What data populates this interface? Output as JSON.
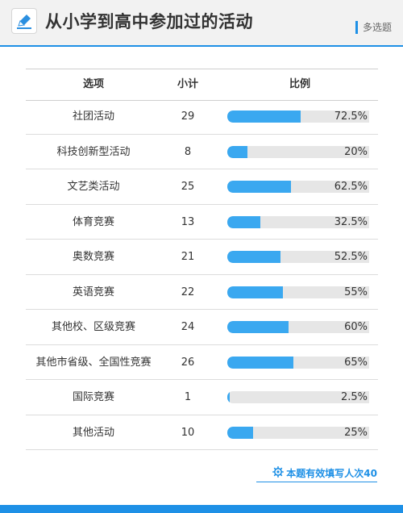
{
  "header": {
    "title": "从小学到高中参加过的活动",
    "question_type": "多选题",
    "icon": "pencil-edit-icon"
  },
  "table": {
    "col_option": "选项",
    "col_count": "小计",
    "col_ratio": "比例"
  },
  "chart_data": {
    "type": "table",
    "columns": [
      "选项",
      "小计",
      "比例"
    ],
    "rows": [
      {
        "option": "社团活动",
        "count": "29",
        "percent_label": "72.5%",
        "percent": 72.5
      },
      {
        "option": "科技创新型活动",
        "count": "8",
        "percent_label": "20%",
        "percent": 20
      },
      {
        "option": "文艺类活动",
        "count": "25",
        "percent_label": "62.5%",
        "percent": 62.5
      },
      {
        "option": "体育竞赛",
        "count": "13",
        "percent_label": "32.5%",
        "percent": 32.5
      },
      {
        "option": "奥数竞赛",
        "count": "21",
        "percent_label": "52.5%",
        "percent": 52.5
      },
      {
        "option": "英语竞赛",
        "count": "22",
        "percent_label": "55%",
        "percent": 55
      },
      {
        "option": "其他校、区级竞赛",
        "count": "24",
        "percent_label": "60%",
        "percent": 60
      },
      {
        "option": "其他市省级、全国性竞赛",
        "count": "26",
        "percent_label": "65%",
        "percent": 65
      },
      {
        "option": "国际竞赛",
        "count": "1",
        "percent_label": "2.5%",
        "percent": 2.5
      },
      {
        "option": "其他活动",
        "count": "10",
        "percent_label": "25%",
        "percent": 25
      }
    ]
  },
  "footer": {
    "note": "本题有效填写人次40",
    "icon": "gear-icon"
  },
  "colors": {
    "accent": "#1e90e6",
    "bar_fill": "#3aa8f0",
    "bar_track": "#e6e6e6"
  }
}
